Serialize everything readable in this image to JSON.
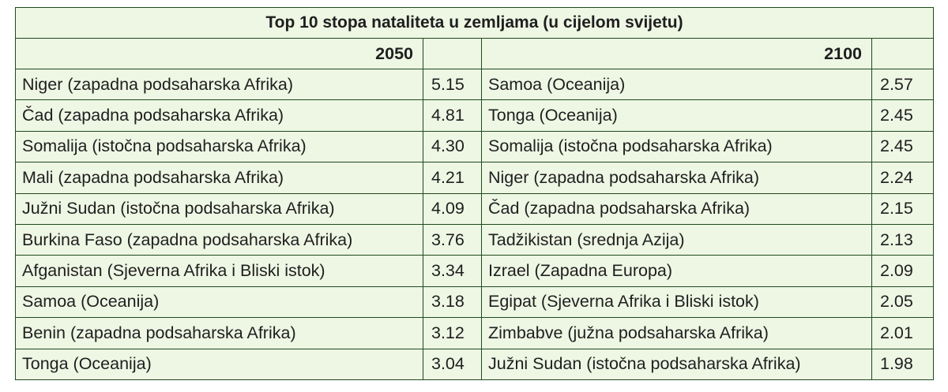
{
  "table": {
    "title": "Top 10 stopa nataliteta u zemljama (u cijelom svijetu)",
    "left_year": "2050",
    "right_year": "2100",
    "rows": [
      {
        "left_country": "Niger (zapadna podsaharska Afrika)",
        "left_rate": "5.15",
        "right_country": "Samoa (Oceanija)",
        "right_rate": "2.57"
      },
      {
        "left_country": "Čad (zapadna podsaharska Afrika)",
        "left_rate": "4.81",
        "right_country": "Tonga (Oceanija)",
        "right_rate": "2.45"
      },
      {
        "left_country": "Somalija (istočna podsaharska Afrika)",
        "left_rate": "4.30",
        "right_country": "Somalija (istočna podsaharska Afrika)",
        "right_rate": "2.45"
      },
      {
        "left_country": "Mali (zapadna podsaharska Afrika)",
        "left_rate": "4.21",
        "right_country": "Niger (zapadna podsaharska Afrika)",
        "right_rate": "2.24"
      },
      {
        "left_country": "Južni Sudan (istočna podsaharska Afrika)",
        "left_rate": "4.09",
        "right_country": "Čad (zapadna podsaharska Afrika)",
        "right_rate": "2.15"
      },
      {
        "left_country": "Burkina Faso (zapadna podsaharska Afrika)",
        "left_rate": "3.76",
        "right_country": "Tadžikistan (srednja Azija)",
        "right_rate": "2.13"
      },
      {
        "left_country": "Afganistan (Sjeverna Afrika i Bliski istok)",
        "left_rate": "3.34",
        "right_country": "Izrael (Zapadna Europa)",
        "right_rate": "2.09"
      },
      {
        "left_country": "Samoa (Oceanija)",
        "left_rate": "3.18",
        "right_country": "Egipat (Sjeverna Afrika i Bliski istok)",
        "right_rate": "2.05"
      },
      {
        "left_country": "Benin (zapadna podsaharska Afrika)",
        "left_rate": "3.12",
        "right_country": "Zimbabve (južna podsaharska Afrika)",
        "right_rate": "2.01"
      },
      {
        "left_country": "Tonga (Oceanija)",
        "left_rate": "3.04",
        "right_country": "Južni Sudan (istočna podsaharska Afrika)",
        "right_rate": "1.98"
      }
    ]
  },
  "colors": {
    "cell_background": "#eef6e4",
    "border": "#1f4a1f",
    "text": "#1f1f1f"
  }
}
